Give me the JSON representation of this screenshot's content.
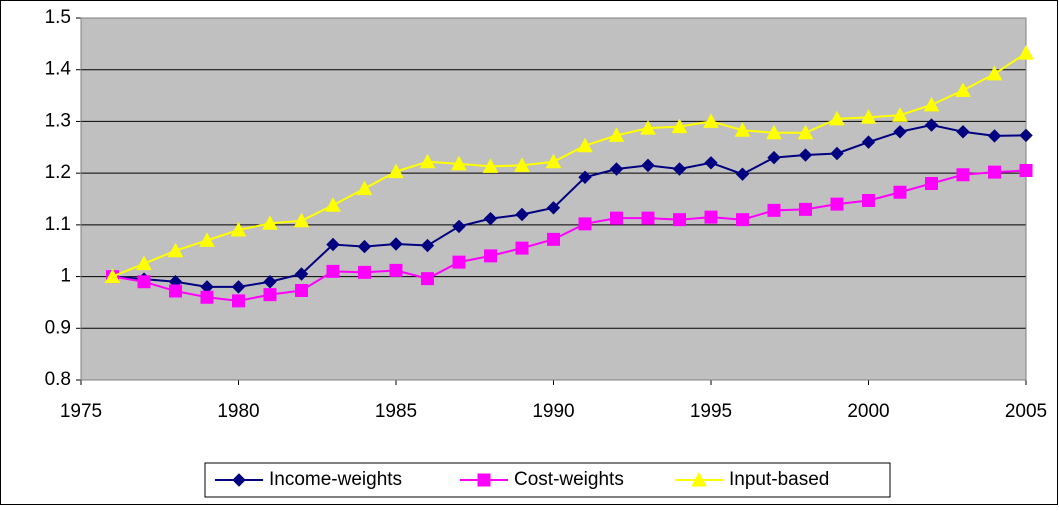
{
  "chart_data": {
    "type": "line",
    "x": [
      1976,
      1977,
      1978,
      1979,
      1980,
      1981,
      1982,
      1983,
      1984,
      1985,
      1986,
      1987,
      1988,
      1989,
      1990,
      1991,
      1992,
      1993,
      1994,
      1995,
      1996,
      1997,
      1998,
      1999,
      2000,
      2001,
      2002,
      2003,
      2004,
      2005
    ],
    "series": [
      {
        "name": "Income-weights",
        "color": "#000080",
        "marker": "diamond",
        "values": [
          1.0,
          0.995,
          0.99,
          0.98,
          0.98,
          0.99,
          1.005,
          1.062,
          1.058,
          1.063,
          1.06,
          1.097,
          1.112,
          1.12,
          1.133,
          1.192,
          1.208,
          1.215,
          1.208,
          1.22,
          1.198,
          1.23,
          1.235,
          1.238,
          1.26,
          1.28,
          1.293,
          1.28,
          1.272,
          1.273
        ]
      },
      {
        "name": "Cost-weights",
        "color": "#ff00ff",
        "marker": "square",
        "values": [
          1.0,
          0.99,
          0.972,
          0.96,
          0.953,
          0.965,
          0.973,
          1.01,
          1.008,
          1.012,
          0.996,
          1.028,
          1.04,
          1.055,
          1.072,
          1.102,
          1.113,
          1.113,
          1.11,
          1.115,
          1.11,
          1.128,
          1.13,
          1.14,
          1.147,
          1.163,
          1.18,
          1.197,
          1.202,
          1.205
        ]
      },
      {
        "name": "Input-based",
        "color": "#ffff00",
        "marker": "triangle",
        "values": [
          1.0,
          1.025,
          1.05,
          1.07,
          1.09,
          1.103,
          1.108,
          1.138,
          1.17,
          1.203,
          1.222,
          1.218,
          1.213,
          1.215,
          1.222,
          1.253,
          1.273,
          1.287,
          1.29,
          1.3,
          1.283,
          1.278,
          1.278,
          1.305,
          1.308,
          1.312,
          1.332,
          1.36,
          1.392,
          1.432
        ]
      }
    ],
    "xlim": [
      1975,
      2005
    ],
    "xticks": [
      1975,
      1980,
      1985,
      1990,
      1995,
      2000,
      2005
    ],
    "ylim": [
      0.8,
      1.5
    ],
    "yticks": [
      0.8,
      0.9,
      1,
      1.1,
      1.2,
      1.3,
      1.4,
      1.5
    ],
    "grid": true,
    "plot_background": "#c0c0c0",
    "legend": "bottom"
  }
}
